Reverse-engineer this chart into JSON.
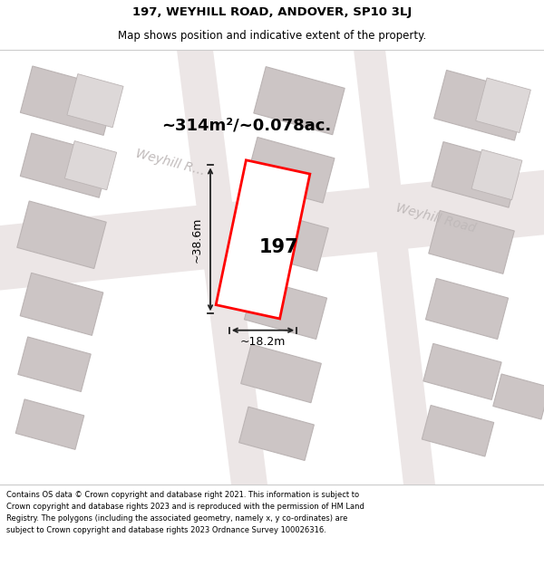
{
  "title_line1": "197, WEYHILL ROAD, ANDOVER, SP10 3LJ",
  "title_line2": "Map shows position and indicative extent of the property.",
  "area_text": "~314m²/~0.078ac.",
  "property_number": "197",
  "dim_width": "~18.2m",
  "dim_height": "~38.6m",
  "footer_text": "Contains OS data © Crown copyright and database right 2021. This information is subject to Crown copyright and database rights 2023 and is reproduced with the permission of HM Land Registry. The polygons (including the associated geometry, namely x, y co-ordinates) are subject to Crown copyright and database rights 2023 Ordnance Survey 100026316.",
  "bg_color": "#f2eded",
  "road_color": "#ece6e6",
  "building_fill": "#ccc5c5",
  "building_edge": "#bbb4b4",
  "building_inner_fill": "#ddd8d8",
  "plot_color": "red",
  "dim_color": "#222222",
  "street_color": "#c0baba",
  "title_color": "#000000",
  "footer_color": "#000000"
}
